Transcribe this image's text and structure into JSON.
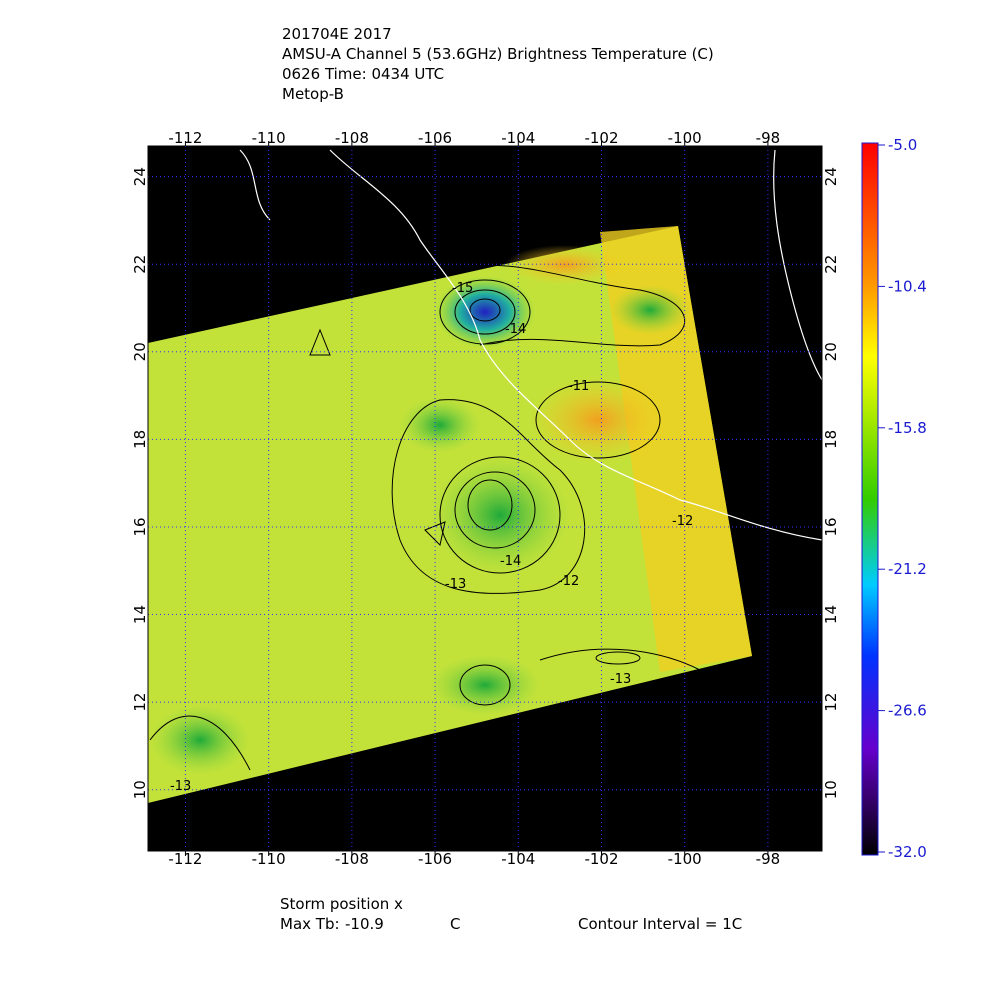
{
  "header": {
    "lines": [
      "201704E 2017",
      "AMSU-A Channel 5 (53.6GHz) Brightness Temperature (C)",
      "0626 Time: 0434 UTC",
      "Metop-B"
    ]
  },
  "map": {
    "lon_range": [
      -112.9,
      -96.7
    ],
    "lat_range": [
      8.6,
      24.7
    ],
    "lon_ticks": [
      -112,
      -110,
      -108,
      -106,
      -104,
      -102,
      -100,
      -98
    ],
    "lat_ticks": [
      10,
      12,
      14,
      16,
      18,
      20,
      22,
      24
    ],
    "contour_labels": [
      -15,
      -14,
      -11,
      -14,
      -13,
      -12,
      -13,
      -13,
      -12
    ]
  },
  "colorbar": {
    "range": [
      -32,
      -5
    ],
    "ticks": [
      {
        "value": -5,
        "label": "-5.0"
      },
      {
        "value": -10.4,
        "label": "-10.4"
      },
      {
        "value": -15.8,
        "label": "-15.8"
      },
      {
        "value": -21.2,
        "label": "-21.2"
      },
      {
        "value": -26.6,
        "label": "-26.6"
      },
      {
        "value": -32,
        "label": "-32.0"
      }
    ]
  },
  "footer": {
    "storm": "Storm position x",
    "max_tb_label": "Max Tb:",
    "max_tb": -10.9,
    "max_tb_unit": "C",
    "contour": "Contour Interval = 1C"
  }
}
